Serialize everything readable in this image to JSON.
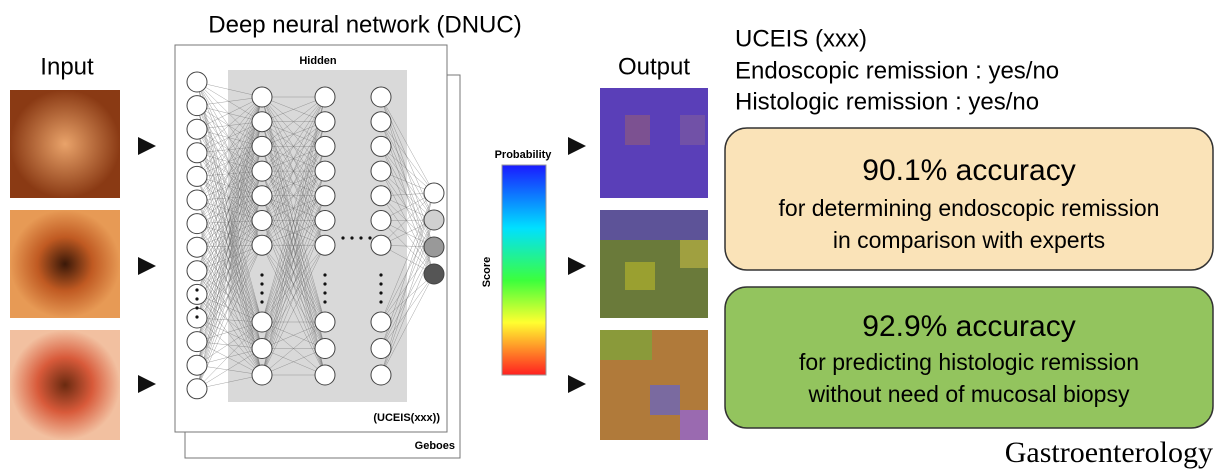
{
  "input": {
    "title": "Input"
  },
  "network": {
    "title": "Deep neural network (DNUC)",
    "hidden": "Hidden",
    "front_label": "(UCEIS(xxx))",
    "back_label": "Geboes"
  },
  "scale": {
    "title": "Probability",
    "axis": "Score"
  },
  "output": {
    "title": "Output",
    "lines": [
      "UCEIS (xxx)",
      "Endoscopic remission : yes/no",
      "Histologic remission : yes/no"
    ]
  },
  "results": [
    {
      "headline": "90.1% accuracy",
      "lines": [
        "for determining endoscopic remission",
        "in comparison with experts"
      ]
    },
    {
      "headline": "92.9% accuracy",
      "lines": [
        "for predicting histologic remission",
        "without need of mucosal biopsy"
      ]
    }
  ],
  "journal": "Gastroenterology"
}
